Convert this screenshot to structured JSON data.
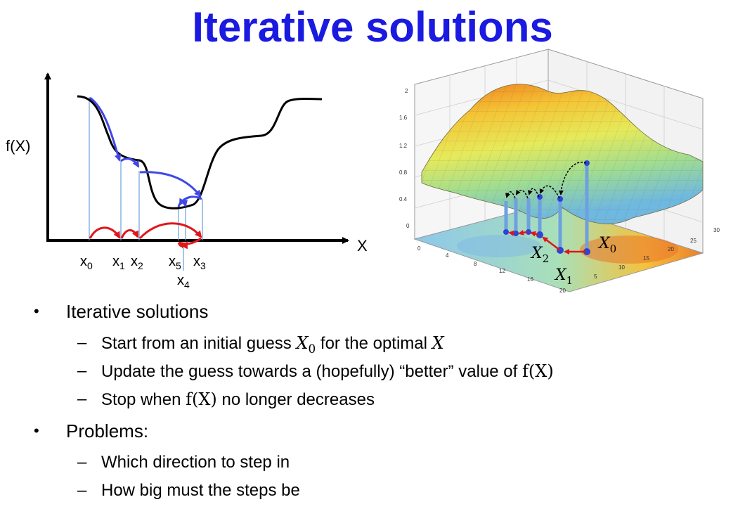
{
  "title": "Iterative solutions",
  "diagram2d": {
    "y_label": "f(X)",
    "x_label": "X",
    "x_points": [
      "x0",
      "x1",
      "x2",
      "x5",
      "x3",
      "x4"
    ]
  },
  "diagram3d": {
    "z_ticks": [
      "2",
      "1.6",
      "1.2",
      "0.8",
      "0.4",
      "0"
    ],
    "y_ticks": [
      "30",
      "25",
      "20",
      "15",
      "10",
      "5"
    ],
    "x_ticks": [
      "0",
      "4",
      "8",
      "12",
      "16",
      "20"
    ],
    "labels": [
      "X0",
      "X1",
      "X2"
    ]
  },
  "bullets": [
    {
      "text": "Iterative solutions",
      "sub": [
        {
          "pre": "Start from an initial guess ",
          "m1": "X",
          "m1sub": "0",
          "mid": " for the optimal ",
          "m2": "X",
          "post": ""
        },
        {
          "pre": "Update the guess towards a (hopefully) “better” value of ",
          "fx": "f(X)"
        },
        {
          "pre": "Stop when ",
          "fx": "f(X)",
          "post": " no longer decreases"
        }
      ]
    },
    {
      "text": "Problems:",
      "sub": [
        {
          "pre": "Which direction to step in"
        },
        {
          "pre": "How big must the steps be"
        }
      ]
    }
  ],
  "colors": {
    "title": "#1a1ae0",
    "blue_arrow": "#3f48e6",
    "red_arrow": "#e0161b",
    "drop_line": "#6a9fd6"
  }
}
